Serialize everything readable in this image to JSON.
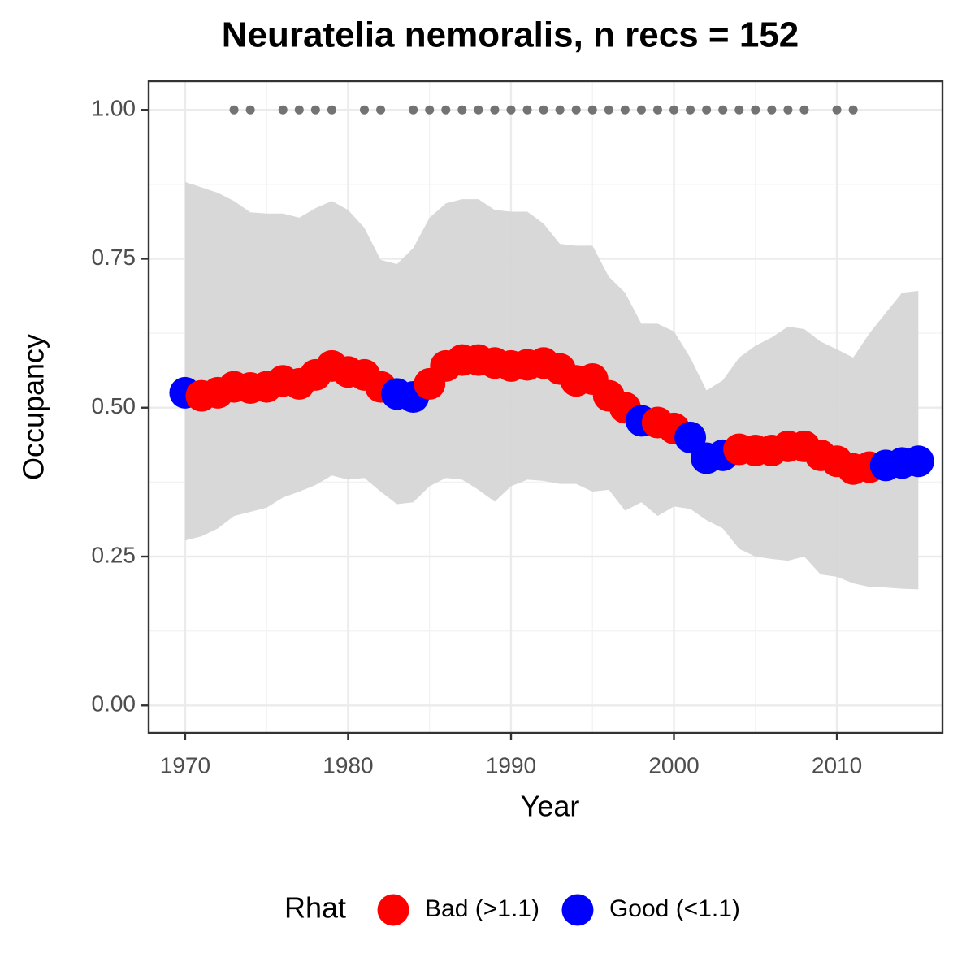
{
  "chart_data": {
    "type": "scatter",
    "title": "Neuratelia nemoralis, n recs = 152",
    "x_label": "Year",
    "y_label": "Occupancy",
    "legend_title": "Rhat",
    "legend_position": "bottom",
    "grid": true,
    "xlim": [
      1967.76,
      2016.48
    ],
    "ylim": [
      -0.046,
      1.048
    ],
    "xticks": [
      1970,
      1980,
      1990,
      2000,
      2010
    ],
    "yticks": [
      {
        "value": 0,
        "label": "0.00"
      },
      {
        "value": 0.25,
        "label": "0.25"
      },
      {
        "value": 0.5,
        "label": "0.50"
      },
      {
        "value": 0.75,
        "label": "0.75"
      },
      {
        "value": 1,
        "label": "1.00"
      }
    ],
    "ribbon": {
      "color": "#d6d6d6",
      "x": [
        1970,
        1971,
        1972,
        1973,
        1974,
        1975,
        1976,
        1977,
        1978,
        1979,
        1980,
        1981,
        1982,
        1983,
        1984,
        1985,
        1986,
        1987,
        1988,
        1989,
        1990,
        1991,
        1992,
        1993,
        1994,
        1995,
        1996,
        1997,
        1998,
        1999,
        2000,
        2001,
        2002,
        2003,
        2004,
        2005,
        2006,
        2007,
        2008,
        2009,
        2010,
        2011,
        2012,
        2013,
        2014,
        2015
      ],
      "upper": [
        0.879,
        0.87,
        0.861,
        0.847,
        0.828,
        0.826,
        0.826,
        0.819,
        0.835,
        0.847,
        0.832,
        0.802,
        0.748,
        0.741,
        0.768,
        0.819,
        0.843,
        0.85,
        0.85,
        0.832,
        0.829,
        0.829,
        0.809,
        0.775,
        0.772,
        0.772,
        0.72,
        0.693,
        0.641,
        0.641,
        0.628,
        0.584,
        0.529,
        0.546,
        0.584,
        0.604,
        0.618,
        0.636,
        0.632,
        0.611,
        0.598,
        0.584,
        0.625,
        0.659,
        0.693,
        0.696
      ],
      "lower": [
        0.277,
        0.284,
        0.297,
        0.318,
        0.325,
        0.332,
        0.349,
        0.359,
        0.37,
        0.386,
        0.379,
        0.382,
        0.359,
        0.338,
        0.341,
        0.368,
        0.382,
        0.379,
        0.362,
        0.342,
        0.368,
        0.379,
        0.377,
        0.372,
        0.372,
        0.359,
        0.362,
        0.327,
        0.341,
        0.318,
        0.334,
        0.33,
        0.311,
        0.297,
        0.263,
        0.25,
        0.246,
        0.243,
        0.25,
        0.22,
        0.216,
        0.205,
        0.199,
        0.198,
        0.196,
        0.195
      ]
    },
    "records": {
      "color": "#737373",
      "x": [
        1973,
        1974,
        1976,
        1977,
        1978,
        1979,
        1981,
        1982,
        1984,
        1985,
        1986,
        1987,
        1988,
        1989,
        1990,
        1991,
        1992,
        1993,
        1994,
        1995,
        1996,
        1997,
        1998,
        1999,
        2000,
        2001,
        2002,
        2003,
        2004,
        2005,
        2006,
        2007,
        2008,
        2010,
        2011
      ],
      "values": [
        1,
        1,
        1,
        1,
        1,
        1,
        1,
        1,
        1,
        1,
        1,
        1,
        1,
        1,
        1,
        1,
        1,
        1,
        1,
        1,
        1,
        1,
        1,
        1,
        1,
        1,
        1,
        1,
        1,
        1,
        1,
        1,
        1,
        1,
        1
      ]
    },
    "series": [
      {
        "name": "Bad (>1.1)",
        "color": "#ff0000",
        "x": [
          1971,
          1972,
          1973,
          1974,
          1975,
          1976,
          1977,
          1978,
          1979,
          1980,
          1981,
          1982,
          1985,
          1986,
          1987,
          1988,
          1989,
          1990,
          1991,
          1992,
          1993,
          1994,
          1995,
          1996,
          1997,
          1999,
          2000,
          2004,
          2005,
          2006,
          2007,
          2008,
          2009,
          2010,
          2011,
          2012
        ],
        "values": [
          0.52,
          0.525,
          0.535,
          0.533,
          0.535,
          0.545,
          0.54,
          0.555,
          0.57,
          0.56,
          0.555,
          0.535,
          0.54,
          0.57,
          0.58,
          0.58,
          0.575,
          0.57,
          0.572,
          0.575,
          0.565,
          0.545,
          0.548,
          0.52,
          0.5,
          0.475,
          0.465,
          0.43,
          0.428,
          0.428,
          0.435,
          0.435,
          0.42,
          0.41,
          0.397,
          0.4
        ]
      },
      {
        "name": "Good (<1.1)",
        "color": "#0000ff",
        "x": [
          1970,
          1983,
          1984,
          1998,
          2001,
          2002,
          2003,
          2013,
          2014,
          2015
        ],
        "values": [
          0.525,
          0.523,
          0.518,
          0.478,
          0.45,
          0.415,
          0.42,
          0.403,
          0.407,
          0.41
        ]
      }
    ]
  }
}
